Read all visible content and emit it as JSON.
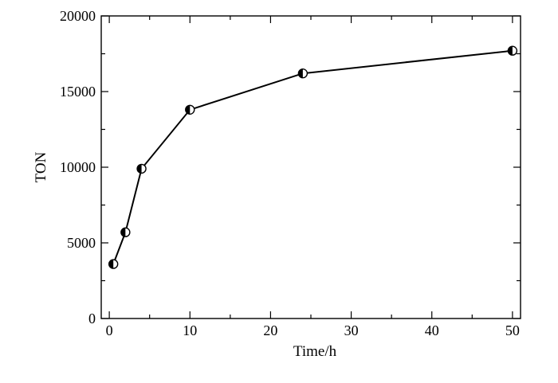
{
  "chart_data": {
    "type": "line",
    "title": "",
    "xlabel": "Time/h",
    "ylabel": "TON",
    "xlim": [
      -1,
      51
    ],
    "ylim": [
      0,
      20000
    ],
    "x_ticks": [
      0,
      10,
      20,
      30,
      40,
      50
    ],
    "y_ticks": [
      0,
      5000,
      10000,
      15000,
      20000
    ],
    "grid": false,
    "legend": "none",
    "marker": "half-filled-circle",
    "series": [
      {
        "x": [
          0.5,
          2,
          4,
          10,
          24,
          50
        ],
        "y": [
          3600,
          5700,
          9900,
          13800,
          16200,
          17700
        ]
      }
    ]
  }
}
